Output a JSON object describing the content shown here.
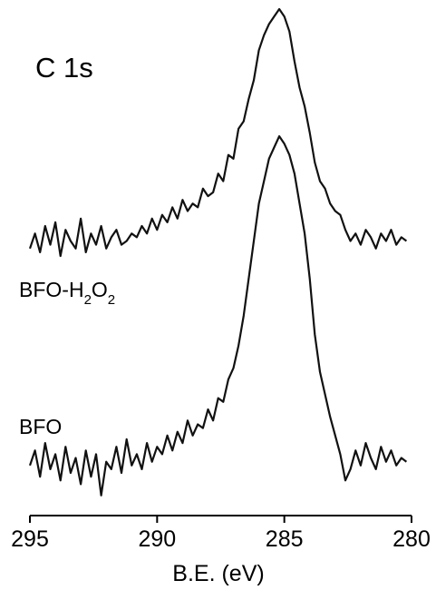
{
  "chart_data": {
    "type": "line",
    "title": "",
    "annotation": "C 1s",
    "xlabel": "B.E. (eV)",
    "ylabel": "",
    "xlim": [
      295,
      280
    ],
    "x_reversed": true,
    "xticks": [
      295,
      290,
      285,
      280
    ],
    "xtick_labels": [
      "295",
      "290",
      "285",
      "280"
    ],
    "y_axis_shown": false,
    "grid": false,
    "ylim": [
      0,
      1.32
    ],
    "series": [
      {
        "name": "BFO-H2O2",
        "label_parts": [
          "BFO-H",
          "2",
          "O",
          "2"
        ],
        "color": "#111111",
        "x": [
          295.0,
          294.8,
          294.6,
          294.4,
          294.2,
          294.0,
          293.8,
          293.6,
          293.4,
          293.2,
          293.0,
          292.8,
          292.6,
          292.4,
          292.2,
          292.0,
          291.8,
          291.6,
          291.4,
          291.2,
          291.0,
          290.8,
          290.6,
          290.4,
          290.2,
          290.0,
          289.8,
          289.6,
          289.4,
          289.2,
          289.0,
          288.8,
          288.6,
          288.4,
          288.2,
          288.0,
          287.8,
          287.6,
          287.4,
          287.2,
          287.0,
          286.8,
          286.6,
          286.4,
          286.2,
          286.0,
          285.8,
          285.6,
          285.4,
          285.2,
          285.0,
          284.8,
          284.6,
          284.4,
          284.2,
          284.0,
          283.8,
          283.6,
          283.4,
          283.2,
          283.0,
          282.8,
          282.6,
          282.4,
          282.2,
          282.0,
          281.8,
          281.6,
          281.4,
          281.2,
          281.0,
          280.8,
          280.6,
          280.4,
          280.2
        ],
        "y": [
          0.68,
          0.72,
          0.67,
          0.74,
          0.69,
          0.75,
          0.66,
          0.73,
          0.7,
          0.68,
          0.76,
          0.67,
          0.72,
          0.69,
          0.74,
          0.68,
          0.71,
          0.73,
          0.69,
          0.7,
          0.72,
          0.71,
          0.74,
          0.72,
          0.76,
          0.73,
          0.77,
          0.75,
          0.79,
          0.76,
          0.81,
          0.78,
          0.8,
          0.79,
          0.84,
          0.82,
          0.83,
          0.88,
          0.86,
          0.93,
          0.92,
          1.0,
          1.02,
          1.08,
          1.13,
          1.21,
          1.25,
          1.28,
          1.3,
          1.32,
          1.3,
          1.26,
          1.18,
          1.11,
          1.06,
          0.99,
          0.91,
          0.86,
          0.84,
          0.8,
          0.78,
          0.77,
          0.73,
          0.7,
          0.72,
          0.69,
          0.73,
          0.71,
          0.68,
          0.72,
          0.7,
          0.73,
          0.69,
          0.71,
          0.7
        ]
      },
      {
        "name": "BFO",
        "label_parts": [
          "BFO"
        ],
        "color": "#111111",
        "x": [
          295.0,
          294.8,
          294.6,
          294.4,
          294.2,
          294.0,
          293.8,
          293.6,
          293.4,
          293.2,
          293.0,
          292.8,
          292.6,
          292.4,
          292.2,
          292.0,
          291.8,
          291.6,
          291.4,
          291.2,
          291.0,
          290.8,
          290.6,
          290.4,
          290.2,
          290.0,
          289.8,
          289.6,
          289.4,
          289.2,
          289.0,
          288.8,
          288.6,
          288.4,
          288.2,
          288.0,
          287.8,
          287.6,
          287.4,
          287.2,
          287.0,
          286.8,
          286.6,
          286.4,
          286.2,
          286.0,
          285.8,
          285.6,
          285.4,
          285.2,
          285.0,
          284.8,
          284.6,
          284.4,
          284.2,
          284.0,
          283.8,
          283.6,
          283.4,
          283.2,
          283.0,
          282.8,
          282.6,
          282.4,
          282.2,
          282.0,
          281.8,
          281.6,
          281.4,
          281.2,
          281.0,
          280.8,
          280.6,
          280.4,
          280.2
        ],
        "y": [
          0.1,
          0.14,
          0.07,
          0.16,
          0.09,
          0.13,
          0.06,
          0.15,
          0.08,
          0.12,
          0.05,
          0.14,
          0.07,
          0.13,
          0.02,
          0.11,
          0.09,
          0.15,
          0.08,
          0.17,
          0.1,
          0.13,
          0.09,
          0.16,
          0.11,
          0.15,
          0.13,
          0.18,
          0.14,
          0.19,
          0.16,
          0.22,
          0.18,
          0.21,
          0.2,
          0.25,
          0.22,
          0.28,
          0.27,
          0.33,
          0.36,
          0.42,
          0.5,
          0.6,
          0.7,
          0.8,
          0.86,
          0.92,
          0.95,
          0.98,
          0.96,
          0.93,
          0.88,
          0.8,
          0.72,
          0.6,
          0.45,
          0.35,
          0.29,
          0.23,
          0.18,
          0.13,
          0.06,
          0.09,
          0.14,
          0.1,
          0.16,
          0.12,
          0.09,
          0.15,
          0.11,
          0.14,
          0.1,
          0.12,
          0.11
        ]
      }
    ]
  }
}
